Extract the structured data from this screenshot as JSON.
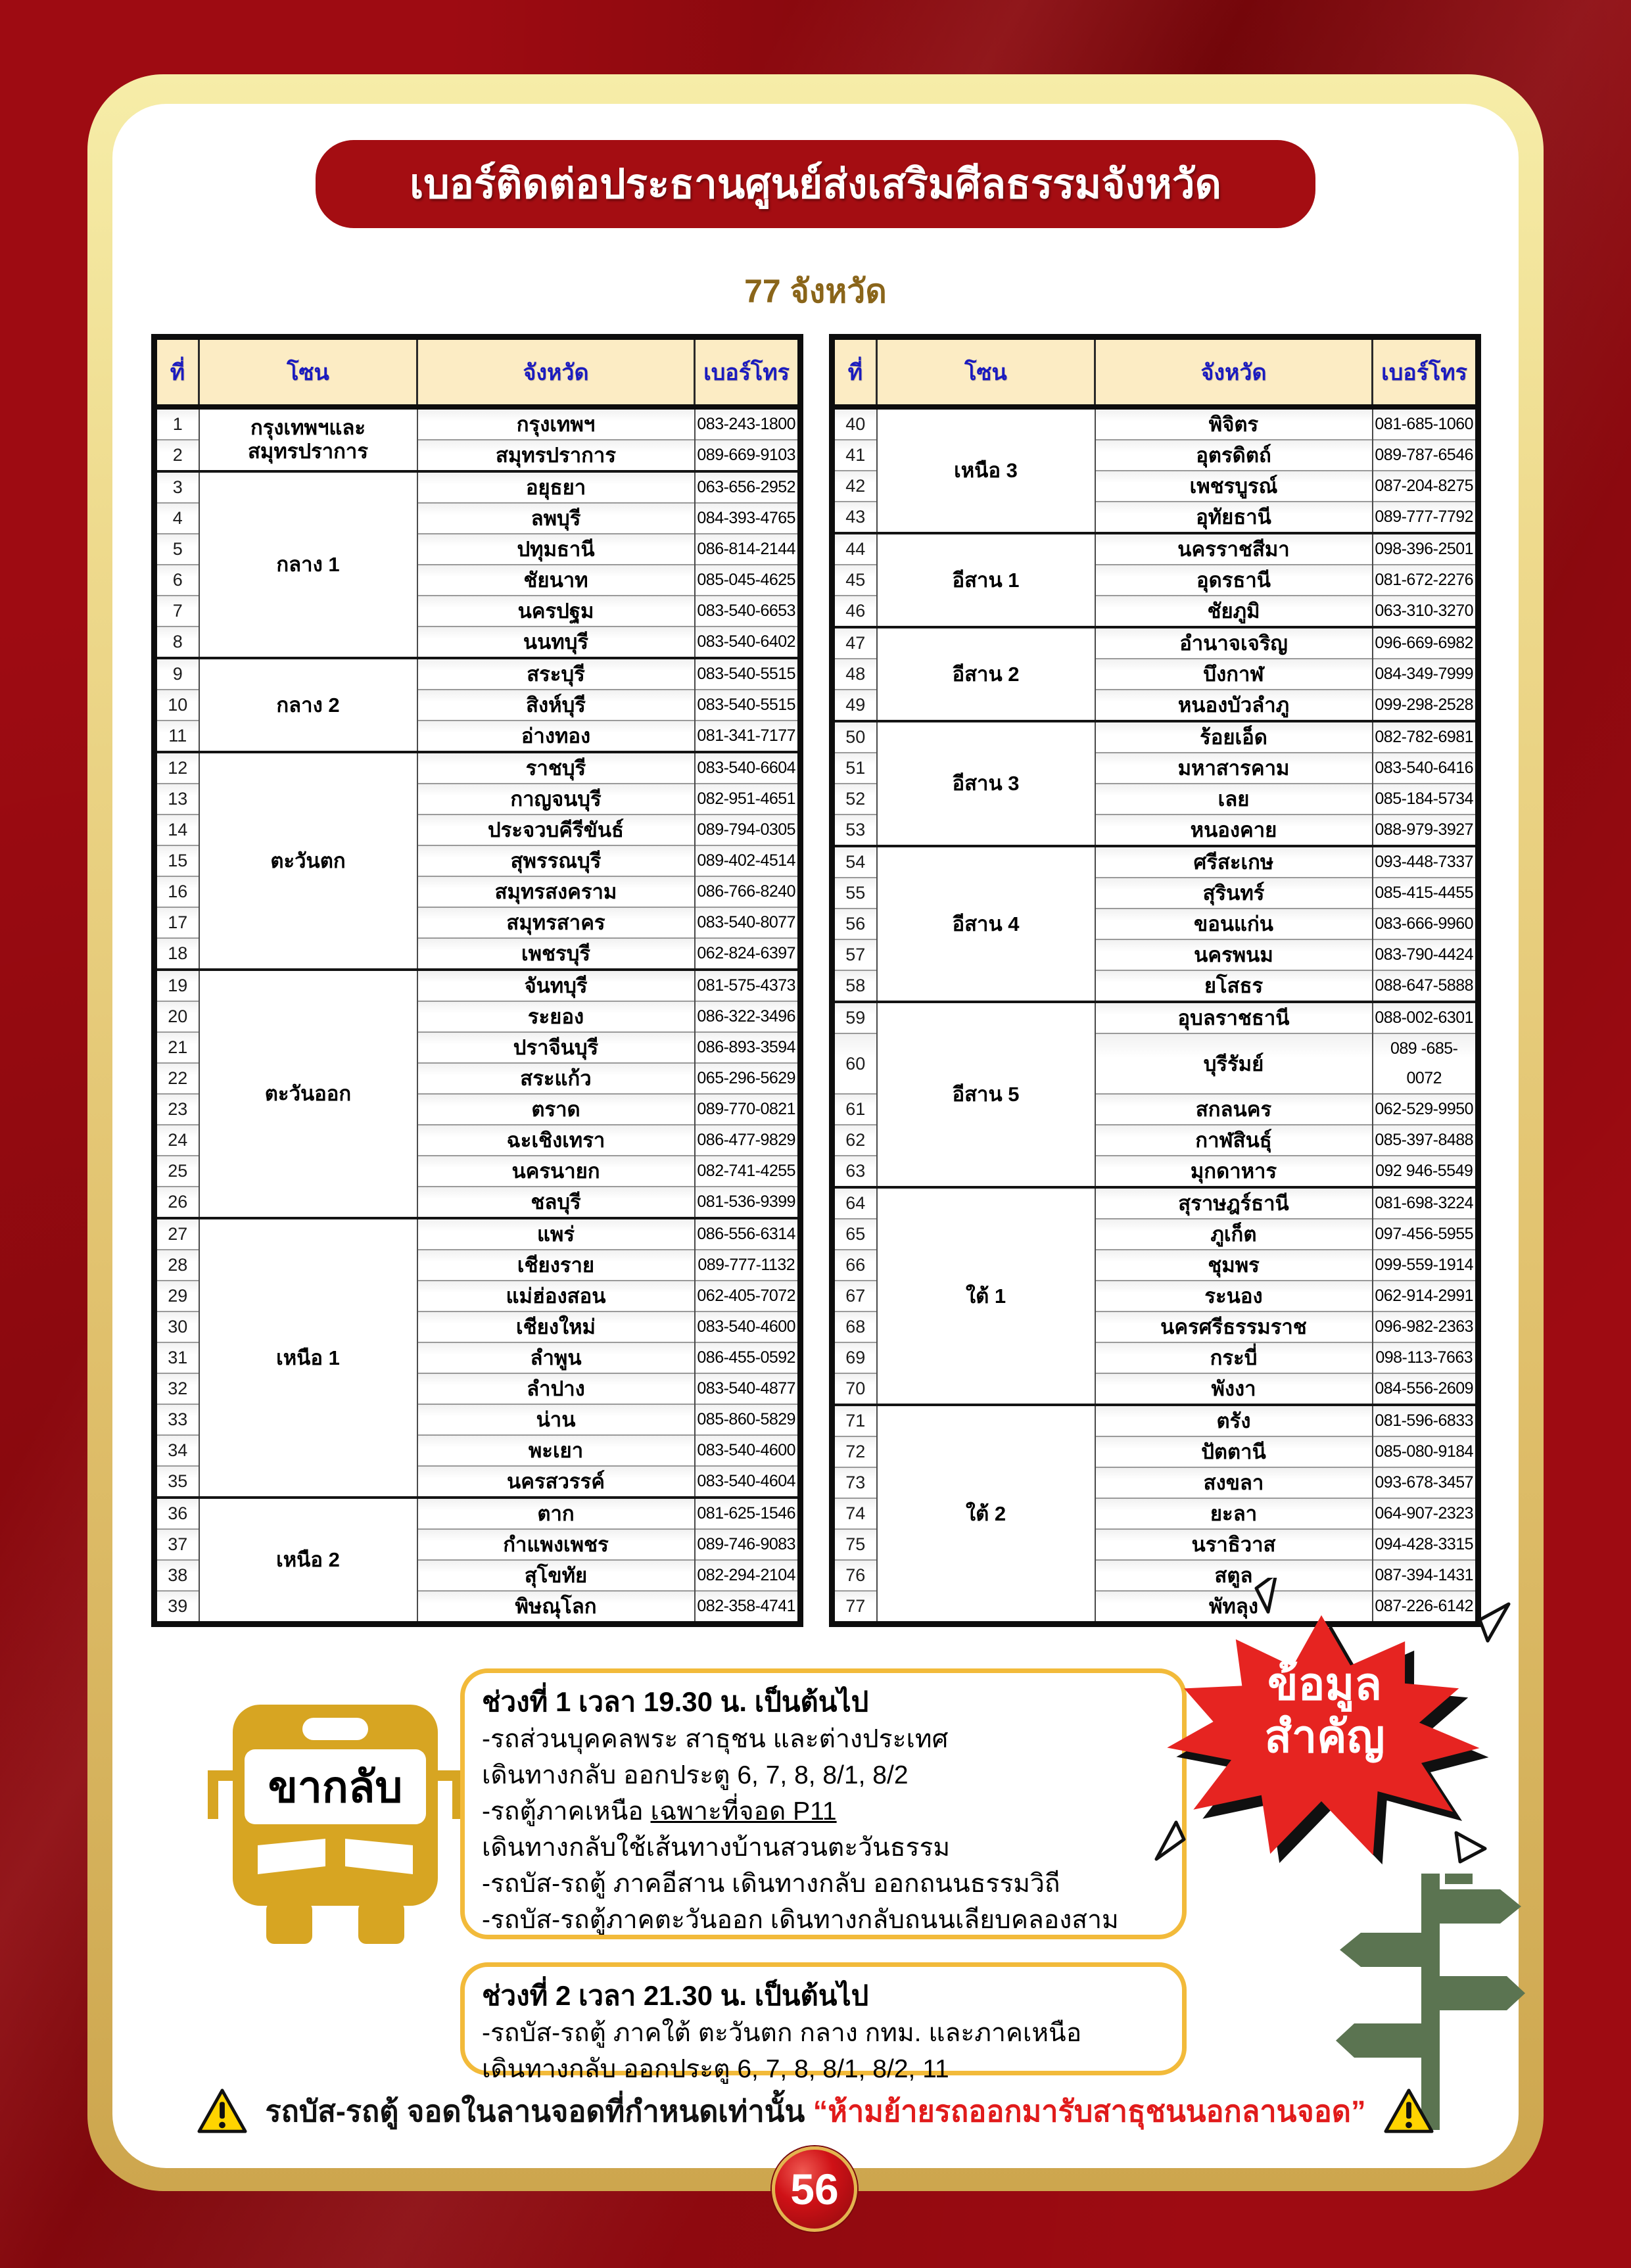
{
  "page": {
    "title": "เบอร์ติดต่อประธานศูนย์ส่งเสริมศีลธรรมจังหวัด",
    "subtitle": "77 จังหวัด",
    "page_number": "56"
  },
  "table": {
    "headers": {
      "no": "ที่",
      "zone": "โซน",
      "province": "จังหวัด",
      "phone": "เบอร์โทร"
    }
  },
  "left_groups": [
    {
      "zone": "กรุงเทพฯและ สมุทรปราการ",
      "rows": [
        {
          "no": "1",
          "province": "กรุงเทพฯ",
          "phone": "083-243-1800"
        },
        {
          "no": "2",
          "province": "สมุทรปราการ",
          "phone": "089-669-9103"
        }
      ]
    },
    {
      "zone": "กลาง 1",
      "rows": [
        {
          "no": "3",
          "province": "อยุธยา",
          "phone": "063-656-2952"
        },
        {
          "no": "4",
          "province": "ลพบุรี",
          "phone": "084-393-4765"
        },
        {
          "no": "5",
          "province": "ปทุมธานี",
          "phone": "086-814-2144"
        },
        {
          "no": "6",
          "province": "ชัยนาท",
          "phone": "085-045-4625"
        },
        {
          "no": "7",
          "province": "นครปฐม",
          "phone": "083-540-6653"
        },
        {
          "no": "8",
          "province": "นนทบุรี",
          "phone": "083-540-6402"
        }
      ]
    },
    {
      "zone": "กลาง 2",
      "rows": [
        {
          "no": "9",
          "province": "สระบุรี",
          "phone": "083-540-5515"
        },
        {
          "no": "10",
          "province": "สิงห์บุรี",
          "phone": "083-540-5515"
        },
        {
          "no": "11",
          "province": "อ่างทอง",
          "phone": "081-341-7177"
        }
      ]
    },
    {
      "zone": "ตะวันตก",
      "rows": [
        {
          "no": "12",
          "province": "ราชบุรี",
          "phone": "083-540-6604"
        },
        {
          "no": "13",
          "province": "กาญจนบุรี",
          "phone": "082-951-4651"
        },
        {
          "no": "14",
          "province": "ประจวบคีรีขันธ์",
          "phone": "089-794-0305"
        },
        {
          "no": "15",
          "province": "สุพรรณบุรี",
          "phone": "089-402-4514"
        },
        {
          "no": "16",
          "province": "สมุทรสงคราม",
          "phone": "086-766-8240"
        },
        {
          "no": "17",
          "province": "สมุทรสาคร",
          "phone": "083-540-8077"
        },
        {
          "no": "18",
          "province": "เพชรบุรี",
          "phone": "062-824-6397"
        }
      ]
    },
    {
      "zone": "ตะวันออก",
      "rows": [
        {
          "no": "19",
          "province": "จันทบุรี",
          "phone": "081-575-4373"
        },
        {
          "no": "20",
          "province": "ระยอง",
          "phone": "086-322-3496"
        },
        {
          "no": "21",
          "province": "ปราจีนบุรี",
          "phone": "086-893-3594"
        },
        {
          "no": "22",
          "province": "สระแก้ว",
          "phone": "065-296-5629"
        },
        {
          "no": "23",
          "province": "ตราด",
          "phone": "089-770-0821"
        },
        {
          "no": "24",
          "province": "ฉะเชิงเทรา",
          "phone": "086-477-9829"
        },
        {
          "no": "25",
          "province": "นครนายก",
          "phone": "082-741-4255"
        },
        {
          "no": "26",
          "province": "ชลบุรี",
          "phone": "081-536-9399"
        }
      ]
    },
    {
      "zone": "เหนือ 1",
      "rows": [
        {
          "no": "27",
          "province": "แพร่",
          "phone": "086-556-6314"
        },
        {
          "no": "28",
          "province": "เชียงราย",
          "phone": "089-777-1132"
        },
        {
          "no": "29",
          "province": "แม่ฮ่องสอน",
          "phone": "062-405-7072"
        },
        {
          "no": "30",
          "province": "เชียงใหม่",
          "phone": "083-540-4600"
        },
        {
          "no": "31",
          "province": "ลำพูน",
          "phone": "086-455-0592"
        },
        {
          "no": "32",
          "province": "ลำปาง",
          "phone": "083-540-4877"
        },
        {
          "no": "33",
          "province": "น่าน",
          "phone": "085-860-5829"
        },
        {
          "no": "34",
          "province": "พะเยา",
          "phone": "083-540-4600"
        },
        {
          "no": "35",
          "province": "นครสวรรค์",
          "phone": "083-540-4604"
        }
      ]
    },
    {
      "zone": "เหนือ 2",
      "rows": [
        {
          "no": "36",
          "province": "ตาก",
          "phone": "081-625-1546"
        },
        {
          "no": "37",
          "province": "กำแพงเพชร",
          "phone": "089-746-9083"
        },
        {
          "no": "38",
          "province": "สุโขทัย",
          "phone": "082-294-2104"
        },
        {
          "no": "39",
          "province": "พิษณุโลก",
          "phone": "082-358-4741"
        }
      ]
    }
  ],
  "right_groups": [
    {
      "zone": "เหนือ 3",
      "rows": [
        {
          "no": "40",
          "province": "พิจิตร",
          "phone": "081-685-1060"
        },
        {
          "no": "41",
          "province": "อุตรดิตถ์",
          "phone": "089-787-6546"
        },
        {
          "no": "42",
          "province": "เพชรบูรณ์",
          "phone": "087-204-8275"
        },
        {
          "no": "43",
          "province": "อุทัยธานี",
          "phone": "089-777-7792"
        }
      ]
    },
    {
      "zone": "อีสาน 1",
      "rows": [
        {
          "no": "44",
          "province": "นครราชสีมา",
          "phone": "098-396-2501"
        },
        {
          "no": "45",
          "province": "อุดรธานี",
          "phone": "081-672-2276"
        },
        {
          "no": "46",
          "province": "ชัยภูมิ",
          "phone": "063-310-3270"
        }
      ]
    },
    {
      "zone": "อีสาน 2",
      "rows": [
        {
          "no": "47",
          "province": "อำนาจเจริญ",
          "phone": "096-669-6982"
        },
        {
          "no": "48",
          "province": "บึงกาฬ",
          "phone": "084-349-7999"
        },
        {
          "no": "49",
          "province": "หนองบัวลำภู",
          "phone": "099-298-2528"
        }
      ]
    },
    {
      "zone": "อีสาน 3",
      "rows": [
        {
          "no": "50",
          "province": "ร้อยเอ็ด",
          "phone": "082-782-6981"
        },
        {
          "no": "51",
          "province": "มหาสารคาม",
          "phone": "083-540-6416"
        },
        {
          "no": "52",
          "province": "เลย",
          "phone": "085-184-5734"
        },
        {
          "no": "53",
          "province": "หนองคาย",
          "phone": "088-979-3927"
        }
      ]
    },
    {
      "zone": "อีสาน 4",
      "rows": [
        {
          "no": "54",
          "province": "ศรีสะเกษ",
          "phone": "093-448-7337"
        },
        {
          "no": "55",
          "province": "สุรินทร์",
          "phone": "085-415-4455"
        },
        {
          "no": "56",
          "province": "ขอนแก่น",
          "phone": "083-666-9960"
        },
        {
          "no": "57",
          "province": "นครพนม",
          "phone": "083-790-4424"
        },
        {
          "no": "58",
          "province": "ยโสธร",
          "phone": "088-647-5888"
        }
      ]
    },
    {
      "zone": "อีสาน 5",
      "rows": [
        {
          "no": "59",
          "province": "อุบลราชธานี",
          "phone": "088-002-6301"
        },
        {
          "no": "60",
          "province": "บุรีรัมย์",
          "phone": "089 -685-0072"
        },
        {
          "no": "61",
          "province": "สกลนคร",
          "phone": "062-529-9950"
        },
        {
          "no": "62",
          "province": "กาฬสินธุ์",
          "phone": "085-397-8488"
        },
        {
          "no": "63",
          "province": "มุกดาหาร",
          "phone": "092 946-5549"
        }
      ]
    },
    {
      "zone": "ใต้ 1",
      "rows": [
        {
          "no": "64",
          "province": "สุราษฎร์ธานี",
          "phone": "081-698-3224"
        },
        {
          "no": "65",
          "province": "ภูเก็ต",
          "phone": "097-456-5955"
        },
        {
          "no": "66",
          "province": "ชุมพร",
          "phone": "099-559-1914"
        },
        {
          "no": "67",
          "province": "ระนอง",
          "phone": "062-914-2991"
        },
        {
          "no": "68",
          "province": "นครศรีธรรมราช",
          "phone": "096-982-2363"
        },
        {
          "no": "69",
          "province": "กระบี่",
          "phone": "098-113-7663"
        },
        {
          "no": "70",
          "province": "พังงา",
          "phone": "084-556-2609"
        }
      ]
    },
    {
      "zone": "ใต้ 2",
      "rows": [
        {
          "no": "71",
          "province": "ตรัง",
          "phone": "081-596-6833"
        },
        {
          "no": "72",
          "province": "ปัตตานี",
          "phone": "085-080-9184"
        },
        {
          "no": "73",
          "province": "สงขลา",
          "phone": "093-678-3457"
        },
        {
          "no": "74",
          "province": "ยะลา",
          "phone": "064-907-2323"
        },
        {
          "no": "75",
          "province": "นราธิวาส",
          "phone": "094-428-3315"
        },
        {
          "no": "76",
          "province": "สตูล",
          "phone": "087-394-1431"
        },
        {
          "no": "77",
          "province": "พัทลุง",
          "phone": "087-226-6142"
        }
      ]
    }
  ],
  "return_info": {
    "bus_label": "ขากลับ",
    "box1": {
      "lines": [
        [
          {
            "t": "ช่วงที่ 1 เวลา 19.30 น.",
            "b": true
          },
          {
            "t": " เป็นต้นไป",
            "b": true
          }
        ],
        [
          {
            "t": "-รถส่วนบุคคลพระ สาธุชน และต่างประเทศ"
          }
        ],
        [
          {
            "t": "เดินทางกลับ ออกประตู 6, 7, 8, 8/1, 8/2"
          }
        ],
        [
          {
            "t": "-รถตู้ภาคเหนือ "
          },
          {
            "t": "เฉพาะที่จอด P11",
            "u": true
          }
        ],
        [
          {
            "t": "เดินทางกลับใช้เส้นทางบ้านสวนตะวันธรรม"
          }
        ],
        [
          {
            "t": "-รถบัส-รถตู้ ภาคอีสาน เดินทางกลับ ออกถนนธรรมวิถี"
          }
        ],
        [
          {
            "t": "-รถบัส-รถตู้ภาคตะวันออก เดินทางกลับถนนเลียบคลองสาม"
          }
        ]
      ]
    },
    "box2": {
      "lines": [
        [
          {
            "t": "ช่วงที่ 2 เวลา 21.30 น.",
            "b": true
          },
          {
            "t": " เป็นต้นไป",
            "b": true
          }
        ],
        [
          {
            "t": "-รถบัส-รถตู้ ภาคใต้ ตะวันตก กลาง กทม. และภาคเหนือ"
          }
        ],
        [
          {
            "t": "เดินทางกลับ ออกประตู 6, 7, 8, 8/1, 8/2, 11"
          }
        ]
      ]
    },
    "burst": {
      "line1": "ข้อมูล",
      "line2": "สำคัญ"
    },
    "warning": {
      "black": "รถบัส-รถตู้ จอดในลานจอดที่กำหนดเท่านั้น ",
      "red": "“ห้ามย้ายรถออกมารับสาธุชนนอกลานจอด”"
    }
  },
  "colors": {
    "background_red": "#9e0b12",
    "banner_red": "#a40d12",
    "gold_border": "#cda64e",
    "header_cream": "#fcecc4",
    "header_blue": "#1b1bbf",
    "subtitle_gold": "#8a651a",
    "bus_gold": "#d7a522",
    "box_border_gold": "#f2ba3a",
    "burst_red": "#e62421",
    "signpost_green": "#5b7451",
    "warning_red": "#e11b1b",
    "triangle_yellow": "#ffd400"
  }
}
